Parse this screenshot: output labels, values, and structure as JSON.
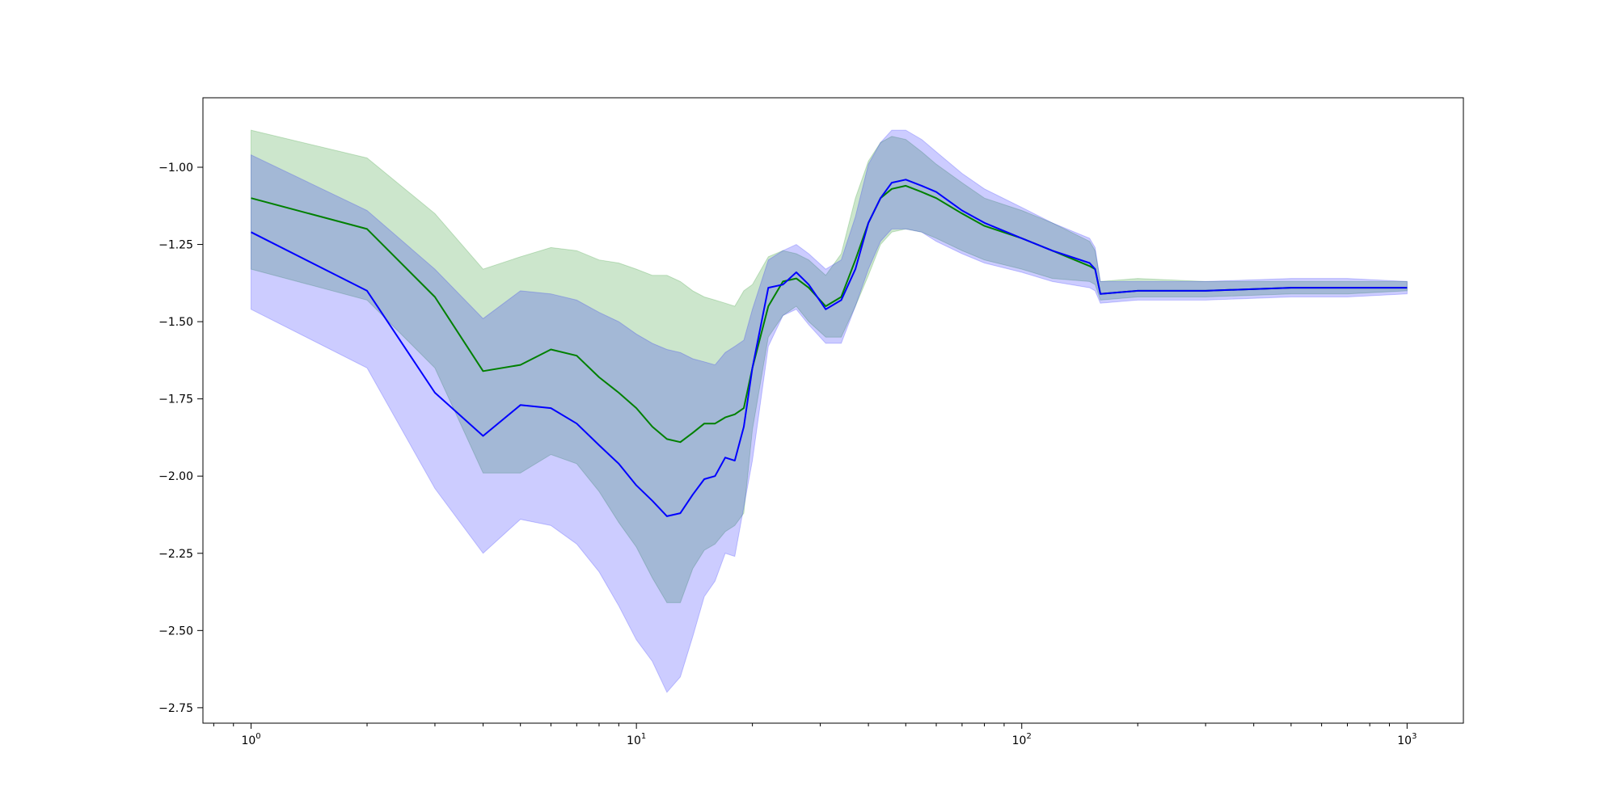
{
  "chart_data": {
    "type": "line",
    "title": "",
    "xlabel": "",
    "ylabel": "",
    "x_scale": "log",
    "xlim": [
      0.75,
      1400
    ],
    "ylim": [
      -2.8,
      -0.775
    ],
    "grid": false,
    "x_ticks": [
      {
        "value": 1,
        "base": "10",
        "exp": "0"
      },
      {
        "value": 10,
        "base": "10",
        "exp": "1"
      },
      {
        "value": 100,
        "base": "10",
        "exp": "2"
      },
      {
        "value": 1000,
        "base": "10",
        "exp": "3"
      }
    ],
    "y_ticks": [
      {
        "value": -1.0,
        "label": "−1.00"
      },
      {
        "value": -1.25,
        "label": "−1.25"
      },
      {
        "value": -1.5,
        "label": "−1.50"
      },
      {
        "value": -1.75,
        "label": "−1.75"
      },
      {
        "value": -2.0,
        "label": "−2.00"
      },
      {
        "value": -2.25,
        "label": "−2.25"
      },
      {
        "value": -2.5,
        "label": "−2.50"
      },
      {
        "value": -2.75,
        "label": "−2.75"
      }
    ],
    "series": [
      {
        "color": "#008000",
        "band_color": "#008000",
        "band_opacity": 0.2,
        "x": [
          1,
          2,
          3,
          4,
          5,
          6,
          7,
          8,
          9,
          10,
          11,
          12,
          13,
          14,
          15,
          16,
          17,
          18,
          19,
          20,
          22,
          24,
          26,
          28,
          31,
          34,
          37,
          40,
          43,
          46,
          50,
          55,
          60,
          70,
          80,
          100,
          120,
          150,
          155,
          160,
          200,
          300,
          500,
          700,
          1000
        ],
        "mean": [
          -1.1,
          -1.2,
          -1.42,
          -1.66,
          -1.64,
          -1.59,
          -1.61,
          -1.68,
          -1.73,
          -1.78,
          -1.84,
          -1.88,
          -1.89,
          -1.86,
          -1.83,
          -1.83,
          -1.81,
          -1.8,
          -1.78,
          -1.65,
          -1.45,
          -1.37,
          -1.36,
          -1.39,
          -1.45,
          -1.42,
          -1.3,
          -1.18,
          -1.1,
          -1.07,
          -1.06,
          -1.08,
          -1.1,
          -1.15,
          -1.19,
          -1.23,
          -1.27,
          -1.32,
          -1.33,
          -1.41,
          -1.4,
          -1.4,
          -1.39,
          -1.39,
          -1.39
        ],
        "lower": [
          -1.33,
          -1.43,
          -1.65,
          -1.99,
          -1.99,
          -1.93,
          -1.96,
          -2.05,
          -2.15,
          -2.23,
          -2.33,
          -2.41,
          -2.41,
          -2.3,
          -2.24,
          -2.22,
          -2.18,
          -2.16,
          -2.12,
          -1.85,
          -1.55,
          -1.48,
          -1.45,
          -1.5,
          -1.55,
          -1.55,
          -1.45,
          -1.35,
          -1.25,
          -1.21,
          -1.2,
          -1.21,
          -1.23,
          -1.27,
          -1.3,
          -1.33,
          -1.36,
          -1.37,
          -1.38,
          -1.43,
          -1.42,
          -1.42,
          -1.41,
          -1.41,
          -1.4
        ],
        "upper": [
          -0.88,
          -0.97,
          -1.15,
          -1.33,
          -1.29,
          -1.26,
          -1.27,
          -1.3,
          -1.31,
          -1.33,
          -1.35,
          -1.35,
          -1.37,
          -1.4,
          -1.42,
          -1.43,
          -1.44,
          -1.45,
          -1.4,
          -1.38,
          -1.29,
          -1.27,
          -1.28,
          -1.3,
          -1.35,
          -1.28,
          -1.1,
          -0.98,
          -0.92,
          -0.9,
          -0.91,
          -0.95,
          -0.99,
          -1.05,
          -1.1,
          -1.14,
          -1.18,
          -1.24,
          -1.27,
          -1.37,
          -1.36,
          -1.37,
          -1.37,
          -1.37,
          -1.37
        ]
      },
      {
        "color": "#0000ff",
        "band_color": "#0000ff",
        "band_opacity": 0.2,
        "x": [
          1,
          2,
          3,
          4,
          5,
          6,
          7,
          8,
          9,
          10,
          11,
          12,
          13,
          14,
          15,
          16,
          17,
          18,
          19,
          20,
          22,
          24,
          26,
          28,
          31,
          34,
          37,
          40,
          43,
          46,
          50,
          55,
          60,
          70,
          80,
          100,
          120,
          150,
          155,
          160,
          200,
          300,
          500,
          700,
          1000
        ],
        "mean": [
          -1.21,
          -1.4,
          -1.73,
          -1.87,
          -1.77,
          -1.78,
          -1.83,
          -1.9,
          -1.96,
          -2.03,
          -2.08,
          -2.13,
          -2.12,
          -2.06,
          -2.01,
          -2.0,
          -1.94,
          -1.95,
          -1.84,
          -1.65,
          -1.39,
          -1.38,
          -1.34,
          -1.38,
          -1.46,
          -1.43,
          -1.33,
          -1.18,
          -1.1,
          -1.05,
          -1.04,
          -1.06,
          -1.08,
          -1.14,
          -1.18,
          -1.23,
          -1.27,
          -1.31,
          -1.33,
          -1.41,
          -1.4,
          -1.4,
          -1.39,
          -1.39,
          -1.39
        ],
        "lower": [
          -1.46,
          -1.65,
          -2.04,
          -2.25,
          -2.14,
          -2.16,
          -2.22,
          -2.31,
          -2.42,
          -2.53,
          -2.6,
          -2.7,
          -2.65,
          -2.52,
          -2.39,
          -2.34,
          -2.25,
          -2.26,
          -2.1,
          -1.95,
          -1.58,
          -1.48,
          -1.46,
          -1.51,
          -1.57,
          -1.57,
          -1.45,
          -1.33,
          -1.24,
          -1.2,
          -1.2,
          -1.21,
          -1.24,
          -1.28,
          -1.31,
          -1.34,
          -1.37,
          -1.39,
          -1.4,
          -1.44,
          -1.43,
          -1.43,
          -1.42,
          -1.42,
          -1.41
        ],
        "upper": [
          -0.96,
          -1.14,
          -1.33,
          -1.49,
          -1.4,
          -1.41,
          -1.43,
          -1.47,
          -1.5,
          -1.54,
          -1.57,
          -1.59,
          -1.6,
          -1.62,
          -1.63,
          -1.64,
          -1.6,
          -1.58,
          -1.56,
          -1.46,
          -1.3,
          -1.27,
          -1.25,
          -1.28,
          -1.33,
          -1.3,
          -1.16,
          -0.99,
          -0.92,
          -0.88,
          -0.88,
          -0.91,
          -0.95,
          -1.02,
          -1.07,
          -1.13,
          -1.18,
          -1.23,
          -1.26,
          -1.37,
          -1.37,
          -1.37,
          -1.36,
          -1.36,
          -1.37
        ]
      }
    ]
  }
}
